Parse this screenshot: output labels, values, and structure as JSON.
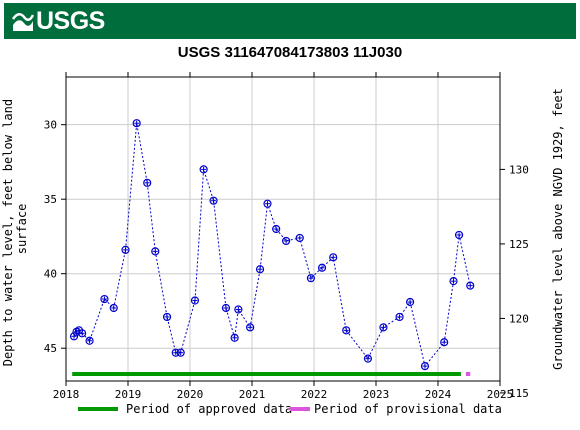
{
  "header": {
    "logo_text": "USGS",
    "title": "USGS 311647084173803 11J030"
  },
  "colors": {
    "banner": "#006d3c",
    "series": "#0000cc",
    "approved": "#009900",
    "provisional": "#dd55dd",
    "grid": "#cccccc"
  },
  "chart_data": {
    "type": "scatter",
    "title": "USGS 311647084173803 11J030",
    "xlabel": "",
    "ylabel_left": "Depth to water level, feet below land surface",
    "ylabel_right": "Groundwater level above NGVD 1929, feet",
    "xlim": [
      2018,
      2025
    ],
    "ylim_left": [
      47.2,
      26.8
    ],
    "right_axis_offset": 163.0,
    "x_ticks": [
      2018,
      2019,
      2020,
      2021,
      2022,
      2023,
      2024,
      2025
    ],
    "x_tick_labels": [
      "2018",
      "2019",
      "2020",
      "2021",
      "2022",
      "2023",
      "2024",
      "2025"
    ],
    "y_ticks_left": [
      30,
      35,
      40,
      45
    ],
    "y_tick_labels_left": [
      "30",
      "35",
      "40",
      "45"
    ],
    "y_ticks_right": [
      130,
      125,
      120,
      115
    ],
    "y_tick_labels_right": [
      "130",
      "125",
      "120",
      "115"
    ],
    "grid": true,
    "series": [
      {
        "points": [
          {
            "x": 2018.13,
            "y": 44.2
          },
          {
            "x": 2018.17,
            "y": 43.9
          },
          {
            "x": 2018.21,
            "y": 43.8
          },
          {
            "x": 2018.26,
            "y": 44.0
          },
          {
            "x": 2018.38,
            "y": 44.5
          },
          {
            "x": 2018.62,
            "y": 41.7
          },
          {
            "x": 2018.77,
            "y": 42.3
          },
          {
            "x": 2018.96,
            "y": 38.4
          },
          {
            "x": 2019.14,
            "y": 29.9
          },
          {
            "x": 2019.31,
            "y": 33.9
          },
          {
            "x": 2019.44,
            "y": 38.5
          },
          {
            "x": 2019.63,
            "y": 42.9
          },
          {
            "x": 2019.77,
            "y": 45.3
          },
          {
            "x": 2019.85,
            "y": 45.3
          },
          {
            "x": 2020.08,
            "y": 41.8
          },
          {
            "x": 2020.22,
            "y": 33.0
          },
          {
            "x": 2020.38,
            "y": 35.1
          },
          {
            "x": 2020.58,
            "y": 42.3
          },
          {
            "x": 2020.72,
            "y": 44.3
          },
          {
            "x": 2020.78,
            "y": 42.4
          },
          {
            "x": 2020.97,
            "y": 43.6
          },
          {
            "x": 2021.13,
            "y": 39.7
          },
          {
            "x": 2021.25,
            "y": 35.3
          },
          {
            "x": 2021.39,
            "y": 37.0
          },
          {
            "x": 2021.55,
            "y": 37.8
          },
          {
            "x": 2021.77,
            "y": 37.6
          },
          {
            "x": 2021.95,
            "y": 40.3
          },
          {
            "x": 2022.13,
            "y": 39.6
          },
          {
            "x": 2022.31,
            "y": 38.9
          },
          {
            "x": 2022.52,
            "y": 43.8
          },
          {
            "x": 2022.87,
            "y": 45.7
          },
          {
            "x": 2023.12,
            "y": 43.6
          },
          {
            "x": 2023.38,
            "y": 42.9
          },
          {
            "x": 2023.55,
            "y": 41.9
          },
          {
            "x": 2023.79,
            "y": 46.2
          },
          {
            "x": 2024.1,
            "y": 44.6
          },
          {
            "x": 2024.25,
            "y": 40.5
          },
          {
            "x": 2024.34,
            "y": 37.4
          },
          {
            "x": 2024.52,
            "y": 40.8
          }
        ]
      }
    ],
    "periods": [
      {
        "label": "Period of approved data",
        "start": 2018.1,
        "end": 2024.37,
        "color": "#009900"
      },
      {
        "label": "Period of provisional data",
        "start": 2024.45,
        "end": 2024.52,
        "color": "#dd55dd"
      }
    ]
  },
  "legend": {
    "approved_label": "Period of approved data",
    "provisional_label": "Period of provisional data"
  }
}
